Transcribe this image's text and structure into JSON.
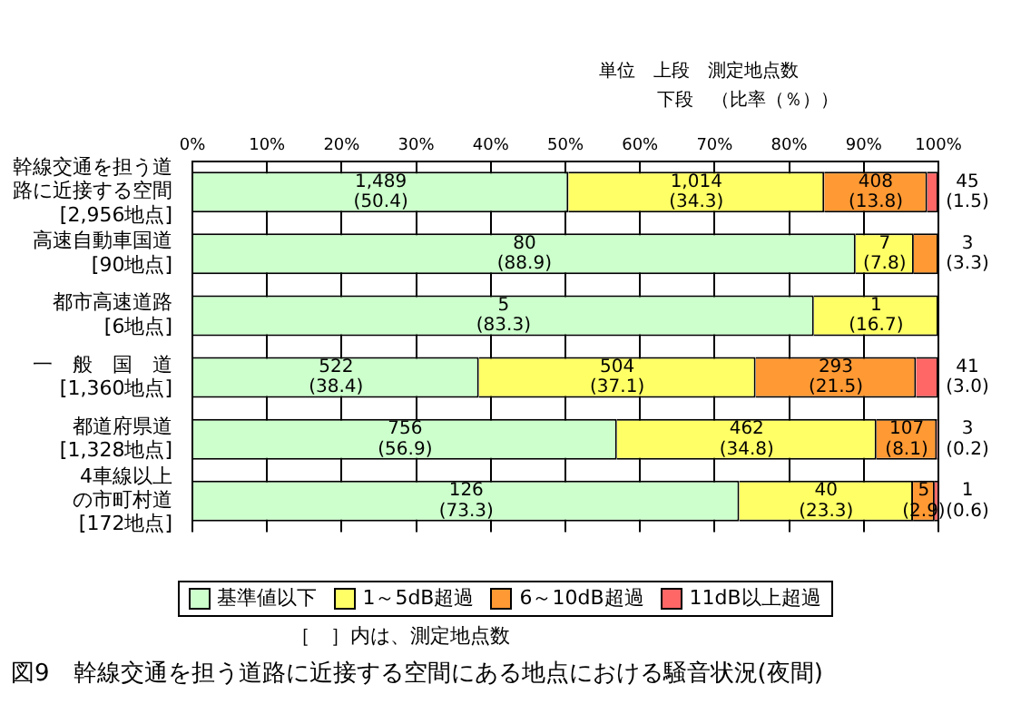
{
  "chart_data": {
    "type": "bar",
    "orientation": "horizontal",
    "stacked": true,
    "title": "図9　幹線交通を担う道路に近接する空間にある地点における騒音状況(夜間)",
    "annotations": [
      "単位　上段　測定地点数",
      "下段　（比率（％））",
      "［　］内は、測定地点数"
    ],
    "categories": [
      "幹線交通を担う道路に近接する空間\n[2,956地点]",
      "高速自動車国道\n[90地点]",
      "都市高速道路\n[6地点]",
      "一　般　国　道\n[1,360地点]",
      "都道府県道\n[1,328地点]",
      "4車線以上の市町村道\n[172地点]"
    ],
    "series": [
      {
        "name": "基準値以下",
        "color": "#ccffcc",
        "values": [
          50.4,
          88.9,
          83.3,
          38.4,
          56.9,
          73.3
        ],
        "value_labels": [
          "1,489\n(50.4)",
          "80\n(88.9)",
          "5\n(83.3)",
          "522\n(38.4)",
          "756\n(56.9)",
          "126\n(73.3)"
        ]
      },
      {
        "name": "1～5dB超過",
        "color": "#ffff66",
        "values": [
          34.3,
          7.8,
          16.7,
          37.1,
          34.8,
          23.3
        ],
        "value_labels": [
          "1,014\n(34.3)",
          "7\n(7.8)",
          "1\n(16.7)",
          "504\n(37.1)",
          "462\n(34.8)",
          "40\n(23.3)"
        ]
      },
      {
        "name": "6～10dB超過",
        "color": "#ff9933",
        "values": [
          13.8,
          3.3,
          0,
          21.5,
          8.1,
          2.9
        ],
        "value_labels": [
          "408\n(13.8)",
          "3\n(3.3)",
          null,
          "293\n(21.5)",
          "107\n(8.1)",
          "5\n(2.9)"
        ]
      },
      {
        "name": "11dB以上超過",
        "color": "#ff6666",
        "values": [
          1.5,
          0,
          0,
          3.0,
          0.2,
          0.6
        ],
        "value_labels": [
          "45\n(1.5)",
          null,
          null,
          "41\n(3.0)",
          "3\n(0.2)",
          "1\n(0.6)"
        ]
      }
    ],
    "xlim": [
      0,
      100
    ],
    "xticks": [
      {
        "value": 0,
        "label": "0%"
      },
      {
        "value": 10,
        "label": "10%"
      },
      {
        "value": 20,
        "label": "20%"
      },
      {
        "value": 30,
        "label": "30%"
      },
      {
        "value": 40,
        "label": "40%"
      },
      {
        "value": 50,
        "label": "50%"
      },
      {
        "value": 60,
        "label": "60%"
      },
      {
        "value": 70,
        "label": "70%"
      },
      {
        "value": 80,
        "label": "80%"
      },
      {
        "value": 90,
        "label": "90%"
      },
      {
        "value": 100,
        "label": "100%"
      }
    ],
    "grid": "x",
    "legend": "bottom"
  }
}
